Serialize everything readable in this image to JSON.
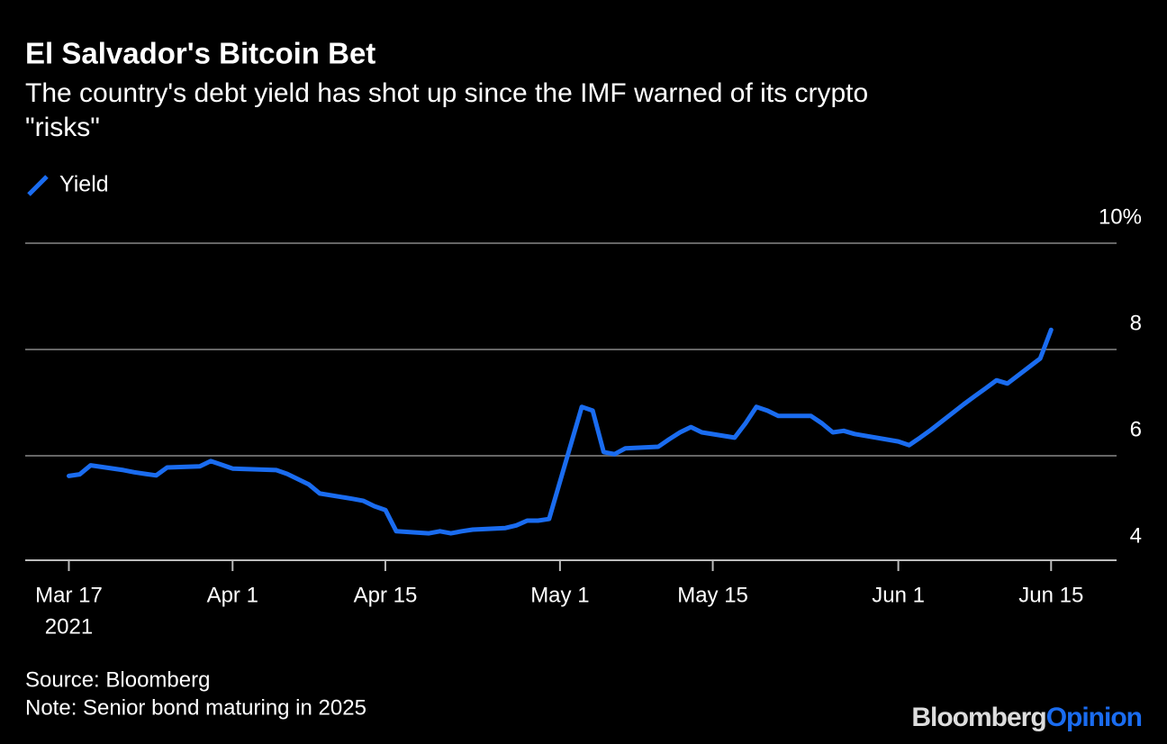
{
  "chart_data": {
    "type": "line",
    "title": "El Salvador's Bitcoin Bet",
    "subtitle": [
      "The country's debt yield has shot up since the IMF warned of its crypto",
      "\"risks\""
    ],
    "x": [
      "2021-03-17",
      "2021-03-18",
      "2021-03-19",
      "2021-03-22",
      "2021-03-23",
      "2021-03-24",
      "2021-03-25",
      "2021-03-26",
      "2021-03-29",
      "2021-03-30",
      "2021-03-31",
      "2021-04-01",
      "2021-04-05",
      "2021-04-06",
      "2021-04-07",
      "2021-04-08",
      "2021-04-09",
      "2021-04-12",
      "2021-04-13",
      "2021-04-14",
      "2021-04-15",
      "2021-04-16",
      "2021-04-19",
      "2021-04-20",
      "2021-04-21",
      "2021-04-22",
      "2021-04-23",
      "2021-04-26",
      "2021-04-27",
      "2021-04-28",
      "2021-04-29",
      "2021-04-30",
      "2021-05-03",
      "2021-05-04",
      "2021-05-05",
      "2021-05-06",
      "2021-05-07",
      "2021-05-10",
      "2021-05-11",
      "2021-05-12",
      "2021-05-13",
      "2021-05-14",
      "2021-05-17",
      "2021-05-18",
      "2021-05-19",
      "2021-05-20",
      "2021-05-21",
      "2021-05-24",
      "2021-05-25",
      "2021-05-26",
      "2021-05-27",
      "2021-05-28",
      "2021-06-01",
      "2021-06-02",
      "2021-06-03",
      "2021-06-04",
      "2021-06-07",
      "2021-06-08",
      "2021-06-09",
      "2021-06-10",
      "2021-06-11",
      "2021-06-14",
      "2021-06-15"
    ],
    "series": [
      {
        "name": "Yield",
        "color": "#1a6cf0",
        "values": [
          5.62,
          5.65,
          5.82,
          5.73,
          5.69,
          5.66,
          5.63,
          5.78,
          5.8,
          5.9,
          5.83,
          5.76,
          5.73,
          5.66,
          5.56,
          5.46,
          5.29,
          5.19,
          5.15,
          5.05,
          4.98,
          4.58,
          4.54,
          4.58,
          4.54,
          4.58,
          4.61,
          4.64,
          4.69,
          4.78,
          4.78,
          4.81,
          6.92,
          6.85,
          6.07,
          6.03,
          6.14,
          6.17,
          6.31,
          6.44,
          6.54,
          6.44,
          6.34,
          6.61,
          6.92,
          6.85,
          6.75,
          6.75,
          6.61,
          6.44,
          6.47,
          6.41,
          6.27,
          6.2,
          6.34,
          6.49,
          6.97,
          7.12,
          7.27,
          7.42,
          7.36,
          7.83,
          8.37
        ]
      }
    ],
    "xlim": [
      "2021-03-13",
      "2021-06-21"
    ],
    "xticks": [
      {
        "value": "2021-03-17",
        "label": "Mar 17"
      },
      {
        "value": "2021-04-01",
        "label": "Apr 1"
      },
      {
        "value": "2021-04-15",
        "label": "Apr 15"
      },
      {
        "value": "2021-05-01",
        "label": "May 1"
      },
      {
        "value": "2021-05-15",
        "label": "May 15"
      },
      {
        "value": "2021-06-01",
        "label": "Jun 1"
      },
      {
        "value": "2021-06-15",
        "label": "Jun 15"
      }
    ],
    "x_year_label": "2021",
    "ylim": [
      4,
      10
    ],
    "yticks": [
      4,
      6,
      8,
      {
        "value": 10,
        "label": "10%"
      }
    ],
    "grid": true,
    "source": "Source: Bloomberg",
    "note": "Note: Senior bond maturing in 2025",
    "brand": "Bloomberg",
    "brand_sub": "Opinion"
  }
}
